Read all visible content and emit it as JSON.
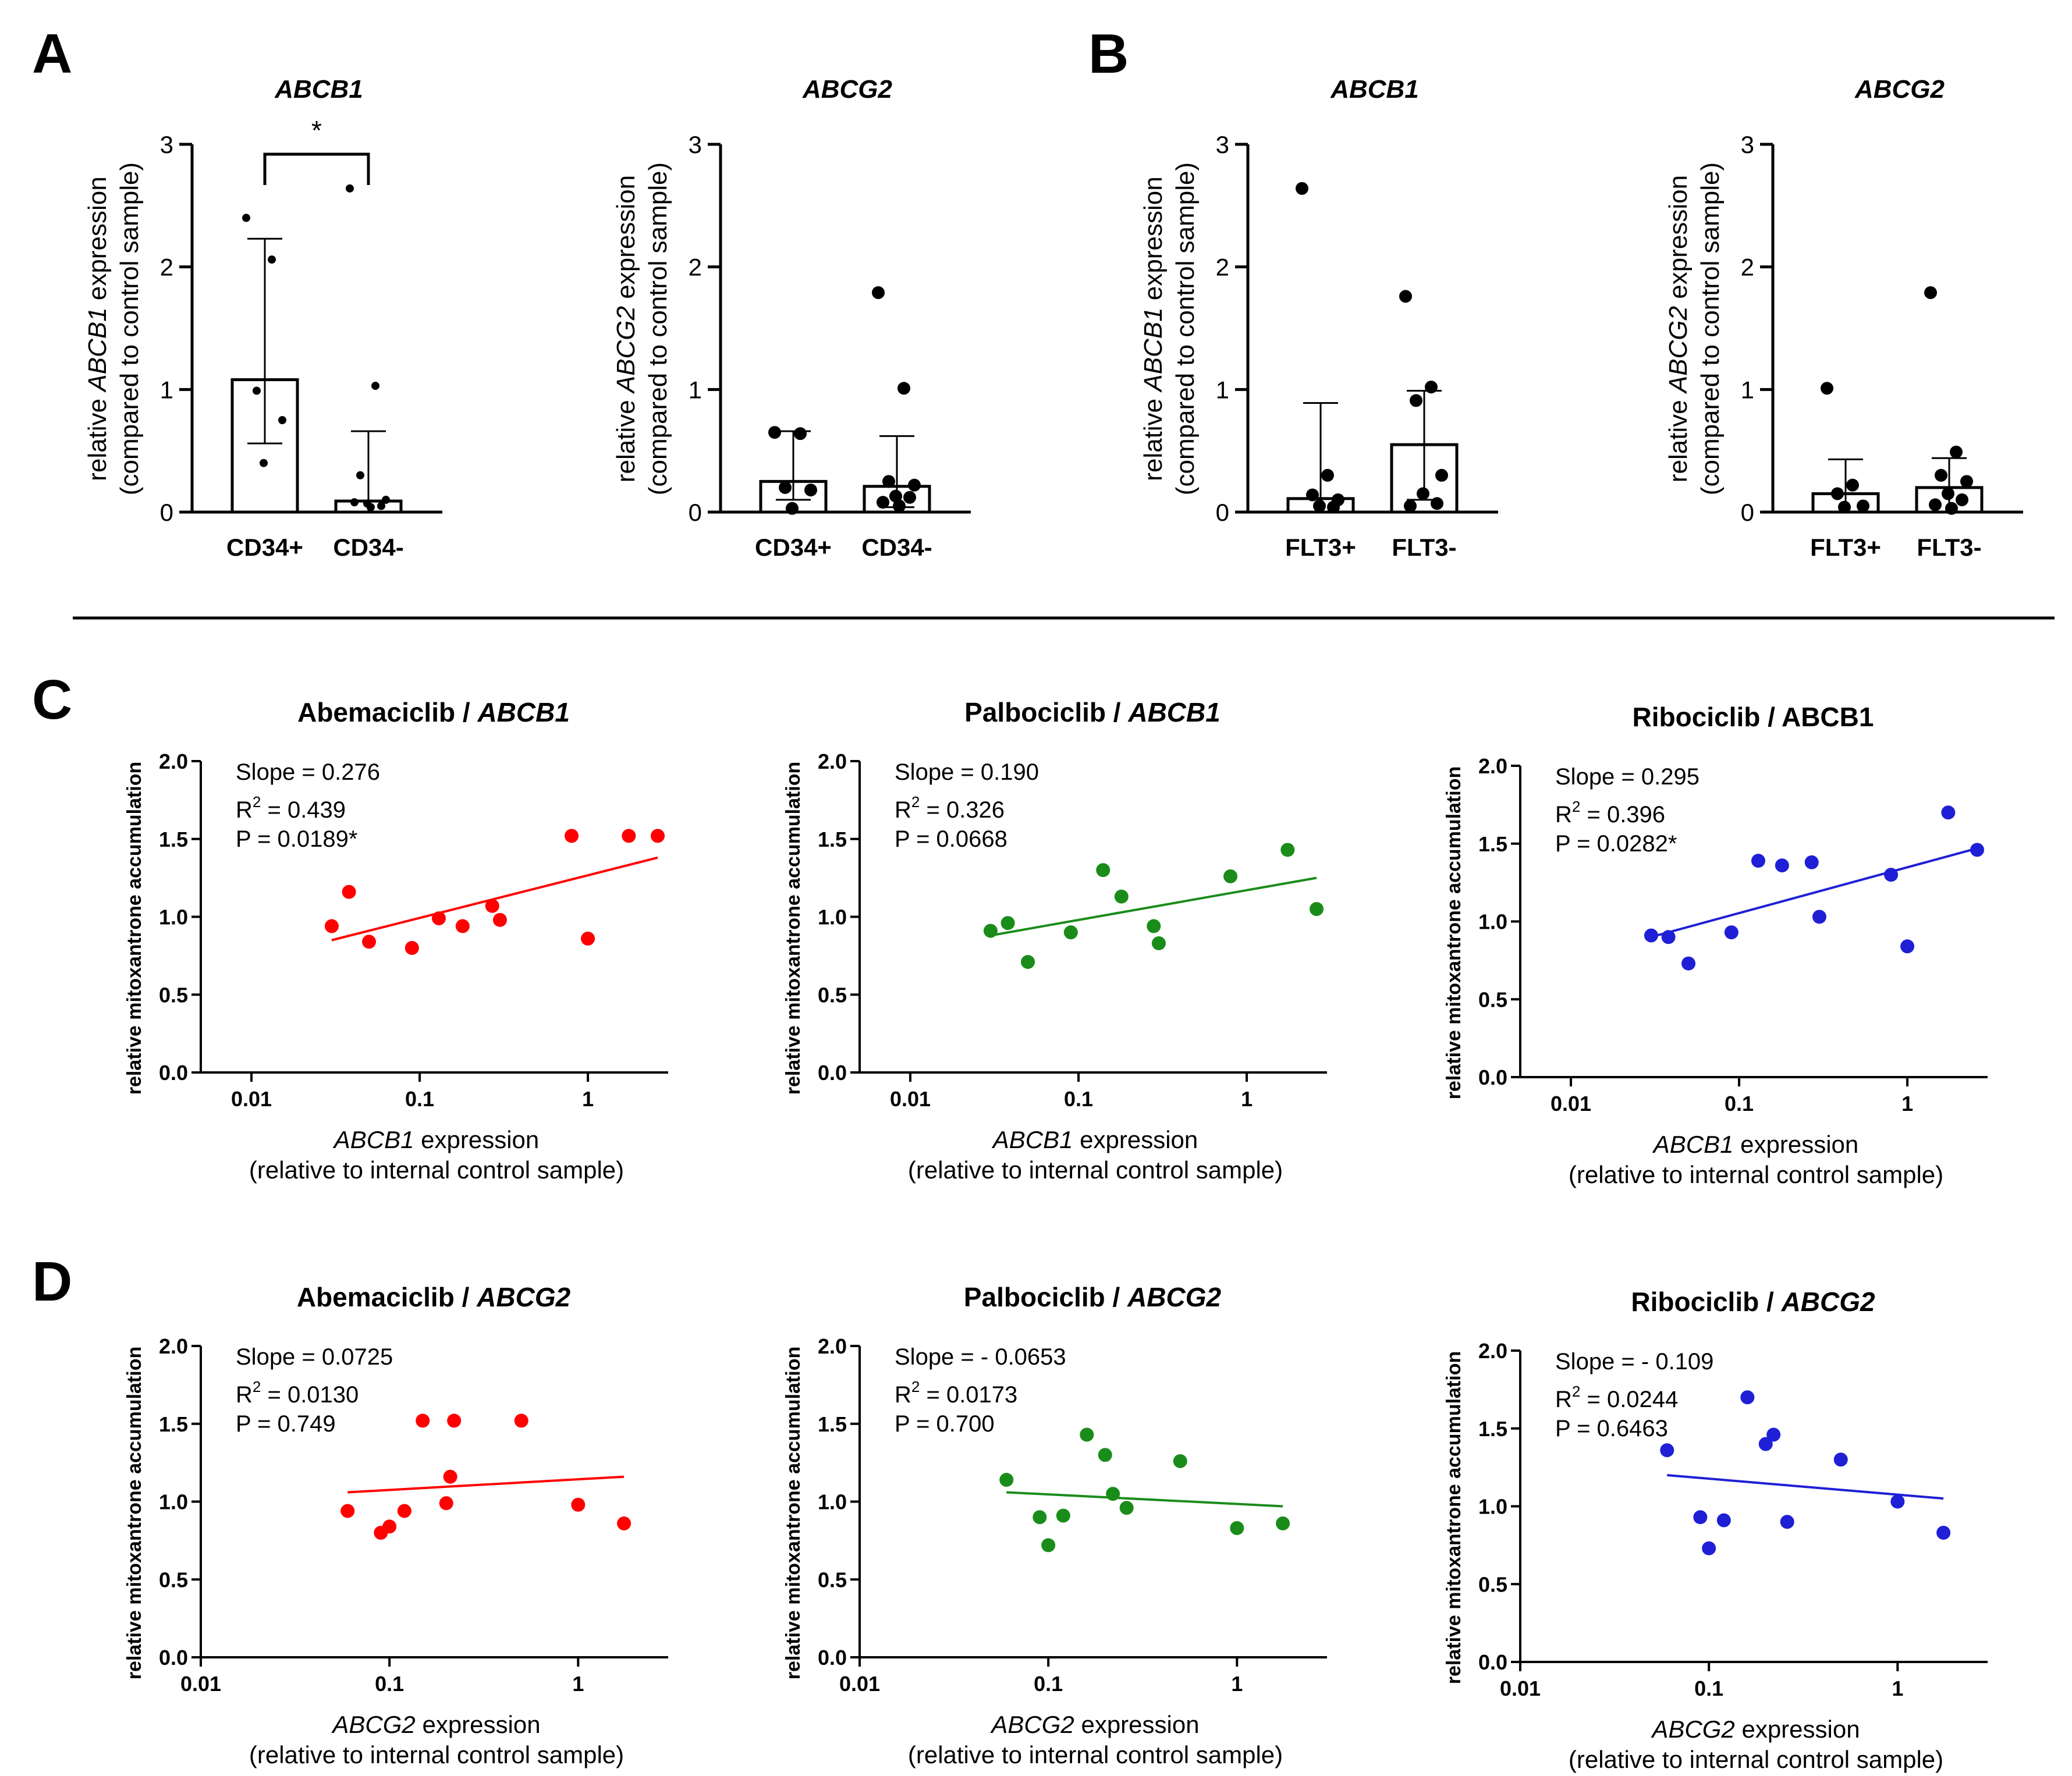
{
  "panel_letters": {
    "A": "A",
    "B": "B",
    "C": "C",
    "D": "D"
  },
  "colors": {
    "red": "#ff0000",
    "green": "#1a8c1a",
    "blue": "#1f1fd6",
    "black": "#000000"
  },
  "bar_panels": [
    {
      "letter": "A",
      "title": "ABCB1",
      "gene": "ABCB1",
      "ylabel_pre": "relative ",
      "ylabel_gene": "ABCB1",
      "ylabel_post": " expression",
      "ylabel2": "(compared to control sample)",
      "categories": [
        "CD34+",
        "CD34-"
      ],
      "bars": [
        1.08,
        0.09
      ],
      "err_low": [
        0.56,
        0.0
      ],
      "err_high": [
        2.23,
        0.66
      ],
      "points": [
        [
          2.4,
          2.06,
          0.99,
          0.75,
          0.4
        ],
        [
          2.64,
          1.03,
          0.3,
          0.1,
          0.07,
          0.05,
          0.08,
          0.04
        ]
      ],
      "significance": "*",
      "yticks": [
        "0",
        "1",
        "2",
        "3"
      ],
      "ylim": [
        0,
        3
      ],
      "marker": "small"
    },
    {
      "letter": "",
      "title": "ABCG2",
      "gene": "ABCG2",
      "ylabel_pre": "relative ",
      "ylabel_gene": "ABCG2",
      "ylabel_post": " expression",
      "ylabel2": "(compared to control sample)",
      "categories": [
        "CD34+",
        "CD34-"
      ],
      "bars": [
        0.25,
        0.21
      ],
      "err_low": [
        0.1,
        0.04
      ],
      "err_high": [
        0.66,
        0.62
      ],
      "points": [
        [
          0.65,
          0.64,
          0.2,
          0.18,
          0.03
        ],
        [
          1.79,
          1.01,
          0.25,
          0.22,
          0.13,
          0.12,
          0.08,
          0.05
        ]
      ],
      "significance": "",
      "yticks": [
        "0",
        "1",
        "2",
        "3"
      ],
      "ylim": [
        0,
        3
      ],
      "marker": "large"
    },
    {
      "letter": "B",
      "title": "ABCB1",
      "gene": "ABCB1",
      "ylabel_pre": "relative ",
      "ylabel_gene": "ABCB1",
      "ylabel_post": " expression",
      "ylabel2": "(compared to control sample)",
      "categories": [
        "FLT3+",
        "FLT3-"
      ],
      "bars": [
        0.11,
        0.55
      ],
      "err_low": [
        0.0,
        0.1
      ],
      "err_high": [
        0.89,
        0.99
      ],
      "points": [
        [
          2.64,
          0.3,
          0.14,
          0.1,
          0.05,
          0.04
        ],
        [
          1.76,
          1.02,
          0.91,
          0.3,
          0.15,
          0.07,
          0.05
        ]
      ],
      "significance": "",
      "yticks": [
        "0",
        "1",
        "2",
        "3"
      ],
      "ylim": [
        0,
        3
      ],
      "marker": "large"
    },
    {
      "letter": "",
      "title": "ABCG2",
      "gene": "ABCG2",
      "ylabel_pre": "relative ",
      "ylabel_gene": "ABCG2",
      "ylabel_post": " expression",
      "ylabel2": "(compared to control sample)",
      "categories": [
        "FLT3+",
        "FLT3-"
      ],
      "bars": [
        0.15,
        0.2
      ],
      "err_low": [
        0.0,
        0.0
      ],
      "err_high": [
        0.43,
        0.44
      ],
      "points": [
        [
          1.01,
          0.22,
          0.15,
          0.05,
          0.04
        ],
        [
          1.79,
          0.49,
          0.3,
          0.25,
          0.15,
          0.1,
          0.06,
          0.03
        ]
      ],
      "significance": "",
      "yticks": [
        "0",
        "1",
        "2",
        "3"
      ],
      "ylim": [
        0,
        3
      ],
      "marker": "large"
    }
  ],
  "chart_data": [
    {
      "type": "bar",
      "title": "ABCB1",
      "categories": [
        "CD34+",
        "CD34-"
      ],
      "values": [
        1.08,
        0.09
      ],
      "ylim": [
        0,
        3
      ],
      "ylabel": "relative ABCB1 expression (compared to control sample)"
    },
    {
      "type": "bar",
      "title": "ABCG2",
      "categories": [
        "CD34+",
        "CD34-"
      ],
      "values": [
        0.25,
        0.21
      ],
      "ylim": [
        0,
        3
      ],
      "ylabel": "relative ABCG2 expression (compared to control sample)"
    },
    {
      "type": "bar",
      "title": "ABCB1",
      "categories": [
        "FLT3+",
        "FLT3-"
      ],
      "values": [
        0.11,
        0.55
      ],
      "ylim": [
        0,
        3
      ],
      "ylabel": "relative ABCB1 expression (compared to control sample)"
    },
    {
      "type": "bar",
      "title": "ABCG2",
      "categories": [
        "FLT3+",
        "FLT3-"
      ],
      "values": [
        0.15,
        0.2
      ],
      "ylim": [
        0,
        3
      ],
      "ylabel": "relative ABCG2 expression (compared to control sample)"
    },
    {
      "type": "scatter",
      "title": "Abemaciclib / ABCB1",
      "xscale": "log",
      "xlim": [
        0.005,
        3
      ],
      "ylim": [
        0,
        2
      ],
      "x": [
        0.03,
        0.038,
        0.05,
        0.09,
        0.13,
        0.18,
        0.27,
        0.3,
        0.8,
        1.0,
        1.75,
        2.6
      ],
      "y": [
        0.94,
        1.16,
        0.84,
        0.8,
        0.99,
        0.94,
        1.07,
        0.98,
        1.52,
        0.86,
        1.52,
        1.52
      ],
      "fit": [
        [
          0.03,
          0.85
        ],
        [
          2.6,
          1.38
        ]
      ]
    },
    {
      "type": "scatter",
      "title": "Palbociclib / ABCB1",
      "xscale": "log",
      "xlim": [
        0.005,
        3
      ],
      "ylim": [
        0,
        2
      ],
      "x": [
        0.03,
        0.038,
        0.05,
        0.09,
        0.14,
        0.18,
        0.28,
        0.3,
        0.8,
        1.75,
        2.6
      ],
      "y": [
        0.91,
        0.96,
        0.71,
        0.9,
        1.3,
        1.13,
        0.94,
        0.83,
        1.26,
        1.43,
        1.05
      ],
      "fit": [
        [
          0.03,
          0.88
        ],
        [
          2.6,
          1.25
        ]
      ]
    },
    {
      "type": "scatter",
      "title": "Ribociclib / ABCB1",
      "xscale": "log",
      "xlim": [
        0.005,
        3
      ],
      "ylim": [
        0,
        2
      ],
      "x": [
        0.03,
        0.038,
        0.05,
        0.09,
        0.13,
        0.18,
        0.27,
        0.3,
        0.8,
        1.0,
        1.75,
        2.6
      ],
      "y": [
        0.91,
        0.9,
        0.73,
        0.93,
        1.39,
        1.36,
        1.38,
        1.03,
        1.3,
        0.84,
        1.7,
        1.46
      ],
      "fit": [
        [
          0.03,
          0.9
        ],
        [
          2.6,
          1.47
        ]
      ]
    },
    {
      "type": "scatter",
      "title": "Abemaciclib / ABCG2",
      "xscale": "log",
      "xlim": [
        0.01,
        3
      ],
      "ylim": [
        0,
        2
      ],
      "x": [
        0.06,
        0.09,
        0.1,
        0.12,
        0.15,
        0.2,
        0.21,
        0.22,
        0.5,
        1.0,
        1.75
      ],
      "y": [
        0.94,
        0.8,
        0.84,
        0.94,
        1.52,
        0.99,
        1.16,
        1.52,
        1.52,
        0.98,
        0.86
      ],
      "fit": [
        [
          0.06,
          1.06
        ],
        [
          1.75,
          1.16
        ]
      ]
    },
    {
      "type": "scatter",
      "title": "Palbociclib / ABCG2",
      "xscale": "log",
      "xlim": [
        0.01,
        3
      ],
      "ylim": [
        0,
        2
      ],
      "x": [
        0.06,
        0.09,
        0.1,
        0.12,
        0.16,
        0.2,
        0.22,
        0.26,
        0.5,
        1.0,
        1.75
      ],
      "y": [
        1.14,
        0.9,
        0.72,
        0.91,
        1.43,
        1.3,
        1.05,
        0.96,
        1.26,
        0.83,
        0.86
      ],
      "fit": [
        [
          0.06,
          1.06
        ],
        [
          1.75,
          0.97
        ]
      ]
    },
    {
      "type": "scatter",
      "title": "Ribociclib / ABCG2",
      "xscale": "log",
      "xlim": [
        0.01,
        3
      ],
      "ylim": [
        0,
        2
      ],
      "x": [
        0.06,
        0.09,
        0.1,
        0.12,
        0.16,
        0.2,
        0.22,
        0.26,
        0.5,
        1.0,
        1.75
      ],
      "y": [
        1.36,
        0.93,
        0.73,
        0.91,
        1.7,
        1.4,
        1.46,
        0.9,
        1.3,
        1.03,
        0.83
      ],
      "fit": [
        [
          0.06,
          1.2
        ],
        [
          1.75,
          1.05
        ]
      ]
    }
  ],
  "scatter_panels": [
    {
      "letter": "C",
      "drug": "Abemaciclib",
      "gene": "ABCB1",
      "gene_italic": true,
      "color": "#ff0000",
      "slope": "Slope = 0.276",
      "r2_pre": "R",
      "r2_sup": "2",
      "r2_val": " = 0.439",
      "pval": "P = 0.0189*",
      "xgene": "ABCB1",
      "xlabel_post": " expression",
      "xlabel2": "(relative to internal control sample)",
      "ylabel": "relative mitoxantrone accumulation",
      "xticks": [
        "0.01",
        "0.1",
        "1"
      ],
      "yticks": [
        "0.0",
        "0.5",
        "1.0",
        "1.5",
        "2.0"
      ]
    },
    {
      "letter": "",
      "drug": "Palbociclib",
      "gene": "ABCB1",
      "gene_italic": true,
      "color": "#1a8c1a",
      "slope": "Slope = 0.190",
      "r2_pre": "R",
      "r2_sup": "2",
      "r2_val": " = 0.326",
      "pval": "P = 0.0668",
      "xgene": "ABCB1",
      "xlabel_post": " expression",
      "xlabel2": "(relative to internal control sample)",
      "ylabel": "relative mitoxantrone accumulation",
      "xticks": [
        "0.01",
        "0.1",
        "1"
      ],
      "yticks": [
        "0.0",
        "0.5",
        "1.0",
        "1.5",
        "2.0"
      ]
    },
    {
      "letter": "",
      "drug": "Ribociclib",
      "gene": "ABCB1",
      "gene_italic": false,
      "color": "#1f1fd6",
      "slope": "Slope = 0.295",
      "r2_pre": "R",
      "r2_sup": "2",
      "r2_val": " = 0.396",
      "pval": "P = 0.0282*",
      "xgene": "ABCB1",
      "xlabel_post": " expression",
      "xlabel2": "(relative to internal control sample)",
      "ylabel": "relative mitoxantrone accumulation",
      "xticks": [
        "0.01",
        "0.1",
        "1"
      ],
      "yticks": [
        "0.0",
        "0.5",
        "1.0",
        "1.5",
        "2.0"
      ]
    },
    {
      "letter": "D",
      "drug": "Abemaciclib",
      "gene": "ABCG2",
      "gene_italic": true,
      "color": "#ff0000",
      "slope": "Slope = 0.0725",
      "r2_pre": "R",
      "r2_sup": "2",
      "r2_val": " = 0.0130",
      "pval": "P = 0.749",
      "xgene": "ABCG2",
      "xlabel_post": " expression",
      "xlabel2": "(relative to internal control sample)",
      "ylabel": "relative mitoxantrone accumulation",
      "xticks": [
        "0.01",
        "0.1",
        "1"
      ],
      "yticks": [
        "0.0",
        "0.5",
        "1.0",
        "1.5",
        "2.0"
      ]
    },
    {
      "letter": "",
      "drug": "Palbociclib",
      "gene": "ABCG2",
      "gene_italic": true,
      "color": "#1a8c1a",
      "slope": "Slope = - 0.0653",
      "r2_pre": "R",
      "r2_sup": "2",
      "r2_val": " = 0.0173",
      "pval": "P = 0.700",
      "xgene": "ABCG2",
      "xlabel_post": " expression",
      "xlabel2": "(relative to internal control sample)",
      "ylabel": "relative mitoxantrone accumulation",
      "xticks": [
        "0.01",
        "0.1",
        "1"
      ],
      "yticks": [
        "0.0",
        "0.5",
        "1.0",
        "1.5",
        "2.0"
      ]
    },
    {
      "letter": "",
      "drug": "Ribociclib",
      "gene": "ABCG2",
      "gene_italic": true,
      "color": "#1f1fd6",
      "slope": "Slope = - 0.109",
      "r2_pre": "R",
      "r2_sup": "2",
      "r2_val": " = 0.0244",
      "pval": "P = 0.6463",
      "xgene": "ABCG2",
      "xlabel_post": " expression",
      "xlabel2": "(relative to internal control sample)",
      "ylabel": "relative mitoxantrone accumulation",
      "xticks": [
        "0.01",
        "0.1",
        "1"
      ],
      "yticks": [
        "0.0",
        "0.5",
        "1.0",
        "1.5",
        "2.0"
      ]
    }
  ]
}
